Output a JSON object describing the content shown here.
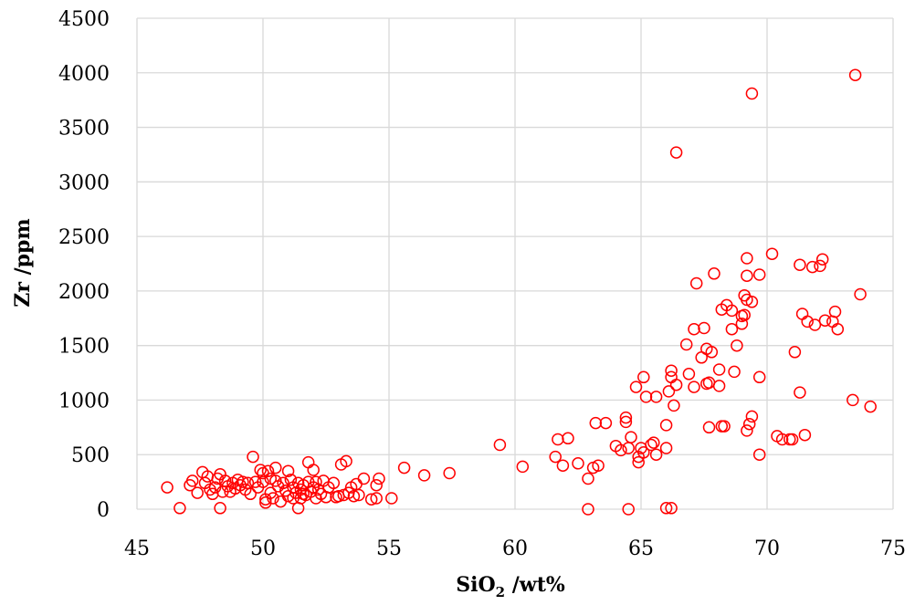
{
  "chart_data": {
    "type": "scatter",
    "title": "",
    "xlabel": "SiO",
    "xlabel_sub": "2",
    "xlabel_rest": " /wt%",
    "ylabel": "Zr /ppm",
    "xlim": [
      45,
      75
    ],
    "ylim": [
      0,
      4500
    ],
    "xticks": [
      "45",
      "50",
      "55",
      "60",
      "65",
      "70",
      "75"
    ],
    "yticks": [
      "0",
      "500",
      "1000",
      "1500",
      "2000",
      "2500",
      "3000",
      "3500",
      "4000",
      "4500"
    ],
    "grid": true,
    "legend": "none",
    "marker": "open-circle",
    "color": "#ff0000",
    "points": [
      [
        46.2,
        200
      ],
      [
        46.7,
        10
      ],
      [
        47.1,
        220
      ],
      [
        47.2,
        260
      ],
      [
        47.4,
        150
      ],
      [
        47.6,
        340
      ],
      [
        47.7,
        240
      ],
      [
        47.8,
        300
      ],
      [
        47.9,
        180
      ],
      [
        48.0,
        140
      ],
      [
        48.1,
        200
      ],
      [
        48.2,
        280
      ],
      [
        48.3,
        320
      ],
      [
        48.3,
        10
      ],
      [
        48.4,
        160
      ],
      [
        48.5,
        260
      ],
      [
        48.6,
        210
      ],
      [
        48.7,
        160
      ],
      [
        48.8,
        240
      ],
      [
        48.9,
        190
      ],
      [
        49.0,
        270
      ],
      [
        49.1,
        220
      ],
      [
        49.2,
        250
      ],
      [
        49.3,
        180
      ],
      [
        49.4,
        240
      ],
      [
        49.5,
        140
      ],
      [
        49.6,
        480
      ],
      [
        49.7,
        250
      ],
      [
        49.8,
        200
      ],
      [
        49.9,
        360
      ],
      [
        50.0,
        330
      ],
      [
        50.0,
        250
      ],
      [
        50.1,
        90
      ],
      [
        50.1,
        60
      ],
      [
        50.2,
        350
      ],
      [
        50.3,
        280
      ],
      [
        50.3,
        150
      ],
      [
        50.4,
        100
      ],
      [
        50.5,
        380
      ],
      [
        50.5,
        260
      ],
      [
        50.6,
        210
      ],
      [
        50.7,
        70
      ],
      [
        50.8,
        240
      ],
      [
        50.9,
        170
      ],
      [
        51.0,
        350
      ],
      [
        51.0,
        120
      ],
      [
        51.1,
        270
      ],
      [
        51.2,
        100
      ],
      [
        51.2,
        200
      ],
      [
        51.3,
        150
      ],
      [
        51.4,
        240
      ],
      [
        51.4,
        10
      ],
      [
        51.5,
        180
      ],
      [
        51.5,
        100
      ],
      [
        51.6,
        140
      ],
      [
        51.6,
        220
      ],
      [
        51.7,
        130
      ],
      [
        51.8,
        430
      ],
      [
        51.8,
        250
      ],
      [
        51.9,
        160
      ],
      [
        52.0,
        200
      ],
      [
        52.0,
        360
      ],
      [
        52.1,
        250
      ],
      [
        52.1,
        100
      ],
      [
        52.2,
        180
      ],
      [
        52.3,
        140
      ],
      [
        52.4,
        260
      ],
      [
        52.5,
        110
      ],
      [
        52.6,
        200
      ],
      [
        52.8,
        240
      ],
      [
        52.9,
        110
      ],
      [
        53.0,
        120
      ],
      [
        53.1,
        410
      ],
      [
        53.2,
        130
      ],
      [
        53.3,
        440
      ],
      [
        53.4,
        150
      ],
      [
        53.5,
        200
      ],
      [
        53.6,
        120
      ],
      [
        53.7,
        230
      ],
      [
        53.8,
        130
      ],
      [
        54.0,
        280
      ],
      [
        54.3,
        90
      ],
      [
        54.5,
        100
      ],
      [
        54.6,
        280
      ],
      [
        54.5,
        220
      ],
      [
        55.1,
        100
      ],
      [
        55.6,
        380
      ],
      [
        56.4,
        310
      ],
      [
        57.4,
        330
      ],
      [
        59.4,
        590
      ],
      [
        60.3,
        390
      ],
      [
        61.6,
        480
      ],
      [
        61.7,
        640
      ],
      [
        61.9,
        400
      ],
      [
        62.1,
        650
      ],
      [
        62.5,
        420
      ],
      [
        62.9,
        0
      ],
      [
        62.9,
        280
      ],
      [
        63.1,
        380
      ],
      [
        63.3,
        400
      ],
      [
        63.2,
        790
      ],
      [
        63.6,
        790
      ],
      [
        64.0,
        580
      ],
      [
        64.2,
        540
      ],
      [
        64.4,
        800
      ],
      [
        64.4,
        840
      ],
      [
        64.5,
        0
      ],
      [
        64.6,
        660
      ],
      [
        64.5,
        560
      ],
      [
        64.8,
        1120
      ],
      [
        64.9,
        480
      ],
      [
        64.9,
        430
      ],
      [
        65.0,
        560
      ],
      [
        65.1,
        1210
      ],
      [
        65.1,
        520
      ],
      [
        65.2,
        1030
      ],
      [
        65.4,
        590
      ],
      [
        65.5,
        610
      ],
      [
        65.6,
        1030
      ],
      [
        65.6,
        500
      ],
      [
        66.0,
        10
      ],
      [
        66.0,
        770
      ],
      [
        66.0,
        560
      ],
      [
        66.1,
        1080
      ],
      [
        66.2,
        10
      ],
      [
        66.2,
        1210
      ],
      [
        66.2,
        1270
      ],
      [
        66.3,
        950
      ],
      [
        66.4,
        1140
      ],
      [
        66.4,
        3270
      ],
      [
        66.8,
        1510
      ],
      [
        66.9,
        1240
      ],
      [
        67.1,
        1650
      ],
      [
        67.1,
        1120
      ],
      [
        67.2,
        2070
      ],
      [
        67.4,
        1390
      ],
      [
        67.5,
        1660
      ],
      [
        67.6,
        1150
      ],
      [
        67.6,
        1470
      ],
      [
        67.7,
        750
      ],
      [
        67.7,
        1160
      ],
      [
        67.8,
        1440
      ],
      [
        67.9,
        2160
      ],
      [
        68.1,
        1280
      ],
      [
        68.1,
        1130
      ],
      [
        68.2,
        1830
      ],
      [
        68.2,
        760
      ],
      [
        68.3,
        760
      ],
      [
        68.4,
        1870
      ],
      [
        68.6,
        1650
      ],
      [
        68.6,
        1820
      ],
      [
        68.7,
        1260
      ],
      [
        68.8,
        1500
      ],
      [
        69.0,
        1700
      ],
      [
        69.0,
        1770
      ],
      [
        69.1,
        1960
      ],
      [
        69.1,
        1780
      ],
      [
        69.2,
        720
      ],
      [
        69.2,
        2300
      ],
      [
        69.2,
        1920
      ],
      [
        69.2,
        2140
      ],
      [
        69.3,
        780
      ],
      [
        69.4,
        850
      ],
      [
        69.4,
        1900
      ],
      [
        69.4,
        3810
      ],
      [
        69.7,
        1210
      ],
      [
        69.7,
        2150
      ],
      [
        69.7,
        500
      ],
      [
        70.2,
        2340
      ],
      [
        70.4,
        670
      ],
      [
        70.6,
        640
      ],
      [
        70.9,
        640
      ],
      [
        71.0,
        640
      ],
      [
        71.1,
        1440
      ],
      [
        71.3,
        1070
      ],
      [
        71.3,
        2240
      ],
      [
        71.4,
        1790
      ],
      [
        71.5,
        680
      ],
      [
        71.6,
        1720
      ],
      [
        71.8,
        2220
      ],
      [
        71.9,
        1690
      ],
      [
        72.1,
        2230
      ],
      [
        72.2,
        2290
      ],
      [
        72.3,
        1730
      ],
      [
        72.6,
        1720
      ],
      [
        72.7,
        1810
      ],
      [
        72.8,
        1650
      ],
      [
        73.4,
        1000
      ],
      [
        73.5,
        3980
      ],
      [
        73.7,
        1970
      ],
      [
        74.1,
        940
      ]
    ]
  }
}
